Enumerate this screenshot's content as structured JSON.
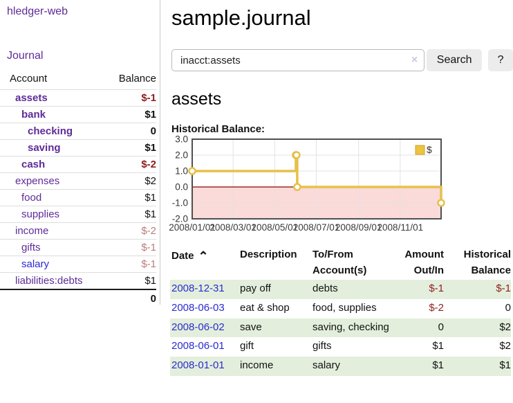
{
  "app": {
    "brand": "hledger-web"
  },
  "sidebar": {
    "journal_link": "Journal",
    "accounts": {
      "col_account": "Account",
      "col_balance": "Balance",
      "rows": [
        {
          "name": "assets",
          "balance": "$-1"
        },
        {
          "name": "bank",
          "balance": "$1"
        },
        {
          "name": "checking",
          "balance": "0"
        },
        {
          "name": "saving",
          "balance": "$1"
        },
        {
          "name": "cash",
          "balance": "$-2"
        },
        {
          "name": "expenses",
          "balance": "$2"
        },
        {
          "name": "food",
          "balance": "$1"
        },
        {
          "name": "supplies",
          "balance": "$1"
        },
        {
          "name": "income",
          "balance": "$-2"
        },
        {
          "name": "gifts",
          "balance": "$-1"
        },
        {
          "name": "salary",
          "balance": "$-1"
        },
        {
          "name": "liabilities:debts",
          "balance": "$1"
        }
      ],
      "total": "0"
    }
  },
  "main": {
    "title": "sample.journal",
    "search": {
      "query": "inacct:assets",
      "clear_icon": "×",
      "search_label": "Search",
      "help_label": "?"
    },
    "account_heading": "assets",
    "chart_title": "Historical Balance:"
  },
  "chart_data": {
    "type": "line",
    "style": "step-after",
    "title": "Historical Balance",
    "xlabel": "",
    "ylabel": "",
    "x_range": [
      "2008-01-01",
      "2008-12-31"
    ],
    "ylim": [
      -2.0,
      3.0
    ],
    "y_ticks": [
      3.0,
      2.0,
      1.0,
      0.0,
      -1.0,
      -2.0
    ],
    "x_ticks": [
      {
        "date": "2008-01-01",
        "label": "2008/01/01"
      },
      {
        "date": "2008-03-01",
        "label": "2008/03/01"
      },
      {
        "date": "2008-05-01",
        "label": "2008/05/01"
      },
      {
        "date": "2008-07-01",
        "label": "2008/07/01"
      },
      {
        "date": "2008-09-01",
        "label": "2008/09/01"
      },
      {
        "date": "2008-11-01",
        "label": "2008/11/01"
      }
    ],
    "series": [
      {
        "name": "$",
        "color": "#E7C04A",
        "points": [
          [
            "2008-01-01",
            1
          ],
          [
            "2008-06-01",
            2
          ],
          [
            "2008-06-02",
            2
          ],
          [
            "2008-06-03",
            0
          ],
          [
            "2008-12-31",
            -1
          ]
        ]
      }
    ],
    "legend": [
      {
        "label": "$",
        "color": "#EDC340"
      }
    ],
    "legend_position": "top-right",
    "grid": true,
    "negative_region_fill": "#FBDADA",
    "zero_line_color": "#8B0000",
    "border_color": "#4F4F4F"
  },
  "register": {
    "columns": {
      "date": "Date",
      "sort_icon": "⌃",
      "description": "Description",
      "accounts": "To/From Account(s)",
      "amount": "Amount Out/In",
      "balance": "Historical Balance"
    },
    "rows": [
      {
        "date": "2008-12-31",
        "description": "pay off",
        "accounts": "debts",
        "amount": "$-1",
        "balance": "$-1"
      },
      {
        "date": "2008-06-03",
        "description": "eat & shop",
        "accounts": "food, supplies",
        "amount": "$-2",
        "balance": "0"
      },
      {
        "date": "2008-06-02",
        "description": "save",
        "accounts": "saving, checking",
        "amount": "0",
        "balance": "$2"
      },
      {
        "date": "2008-06-01",
        "description": "gift",
        "accounts": "gifts",
        "amount": "$1",
        "balance": "$2"
      },
      {
        "date": "2008-01-01",
        "description": "income",
        "accounts": "salary",
        "amount": "$1",
        "balance": "$1"
      }
    ]
  }
}
